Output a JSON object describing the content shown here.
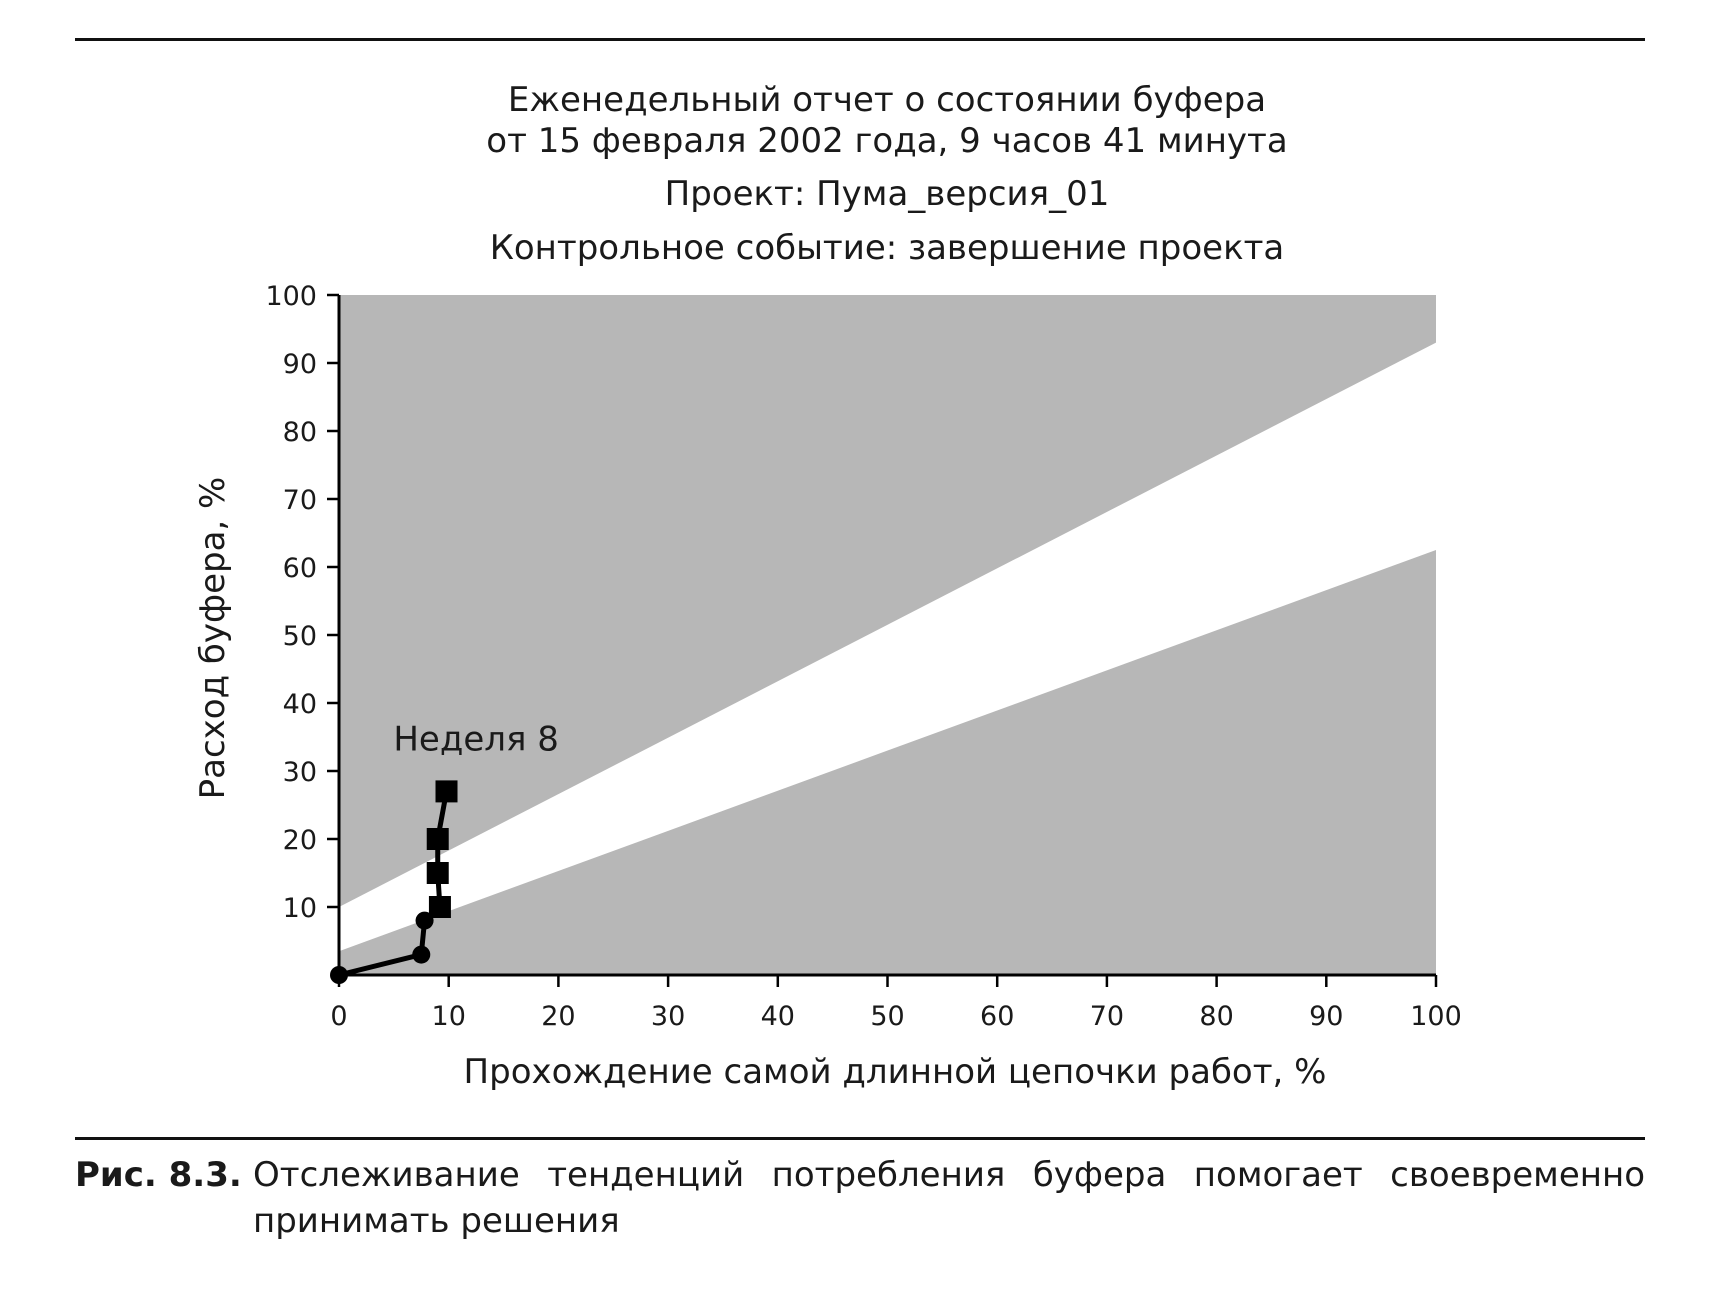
{
  "figure": {
    "label": "Рис. 8.3.",
    "caption": "Отслеживание тенденций потребления буфера помогает своевременно принимать решения"
  },
  "chart_data": {
    "type": "line",
    "title_lines": [
      "Еженедельный отчет о состоянии буфера",
      "от 15 февраля 2002 года, 9 часов 41 минута"
    ],
    "project": "Проект: Пума_версия_01",
    "milestone": "Контрольное событие: завершение проекта",
    "xlabel": "Прохождение самой длинной цепочки работ, %",
    "ylabel": "Расход буфера, %",
    "xlim": [
      0,
      100
    ],
    "ylim": [
      0,
      100
    ],
    "x_ticks": [
      0,
      10,
      20,
      30,
      40,
      50,
      60,
      70,
      80,
      90,
      100
    ],
    "y_ticks": [
      10,
      20,
      30,
      40,
      50,
      60,
      70,
      80,
      90,
      100
    ],
    "zones": {
      "upper_line": {
        "x": [
          0,
          100
        ],
        "y": [
          10,
          93
        ]
      },
      "lower_line": {
        "x": [
          0,
          100
        ],
        "y": [
          3.5,
          62.5
        ]
      },
      "colors": {
        "zone": "#b7b7b7",
        "safe": "#ffffff"
      }
    },
    "series": [
      {
        "name": "Расход буфера",
        "color": "#000000",
        "points": [
          {
            "x": 0,
            "y": 0,
            "marker": "circle"
          },
          {
            "x": 7.5,
            "y": 3,
            "marker": "circle"
          },
          {
            "x": 7.8,
            "y": 8,
            "marker": "circle"
          },
          {
            "x": 9.2,
            "y": 10,
            "marker": "square"
          },
          {
            "x": 9.0,
            "y": 15,
            "marker": "square"
          },
          {
            "x": 9.0,
            "y": 20,
            "marker": "square"
          },
          {
            "x": 9.8,
            "y": 27,
            "marker": "square"
          }
        ]
      }
    ],
    "annotations": [
      {
        "text": "Неделя 8",
        "x": 12.5,
        "y": 33
      }
    ]
  }
}
